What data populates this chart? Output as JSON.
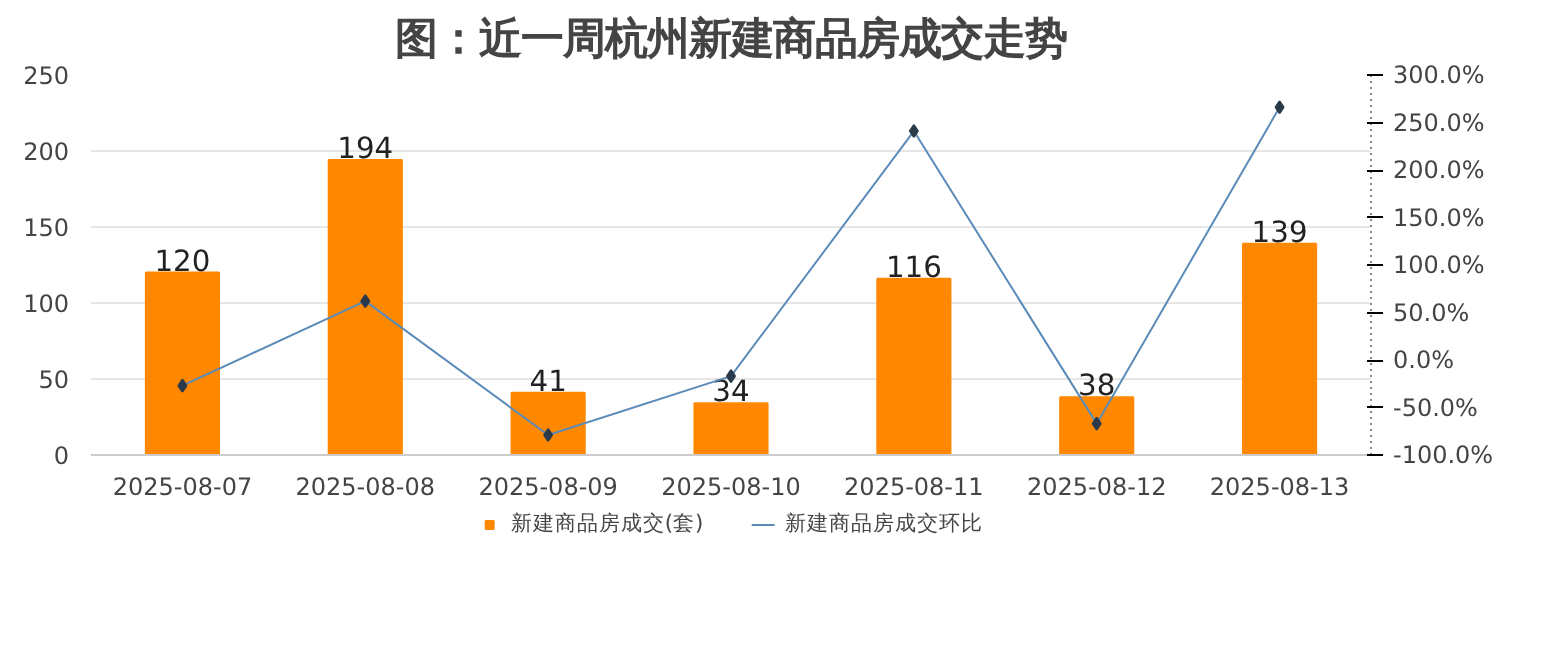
{
  "chart_data": {
    "type": "bar",
    "title": "图：近一周杭州新建商品房成交走势",
    "categories": [
      "2025-08-07",
      "2025-08-08",
      "2025-08-09",
      "2025-08-10",
      "2025-08-11",
      "2025-08-12",
      "2025-08-13"
    ],
    "series": [
      {
        "name": "新建商品房成交(套)",
        "color": "#ff8800",
        "values": [
          120,
          194,
          41,
          34,
          116,
          38,
          139
        ],
        "data_labels": true
      },
      {
        "name": "新建商品房成交环比",
        "type": "line",
        "axis": "y2",
        "color": "#5b8bb8",
        "marker": "diamond",
        "values": [
          -27,
          62,
          -79,
          -17,
          241,
          -67,
          266
        ]
      }
    ],
    "ylim": [
      0,
      250
    ],
    "yticks": [
      0,
      50,
      100,
      150,
      200,
      250
    ],
    "y2lim": [
      -100,
      300
    ],
    "y2ticks": [
      {
        "value": -100,
        "label": "-100.0%"
      },
      {
        "value": -50,
        "label": "-50.0%"
      },
      {
        "value": 0,
        "label": "0.0%"
      },
      {
        "value": 50,
        "label": "50.0%"
      },
      {
        "value": 100,
        "label": "100.0%"
      },
      {
        "value": 150,
        "label": "150.0%"
      },
      {
        "value": 200,
        "label": "200.0%"
      },
      {
        "value": 250,
        "label": "250.0%"
      },
      {
        "value": 300,
        "label": "300.0%"
      }
    ],
    "grid": "y",
    "legend": "bottom"
  }
}
